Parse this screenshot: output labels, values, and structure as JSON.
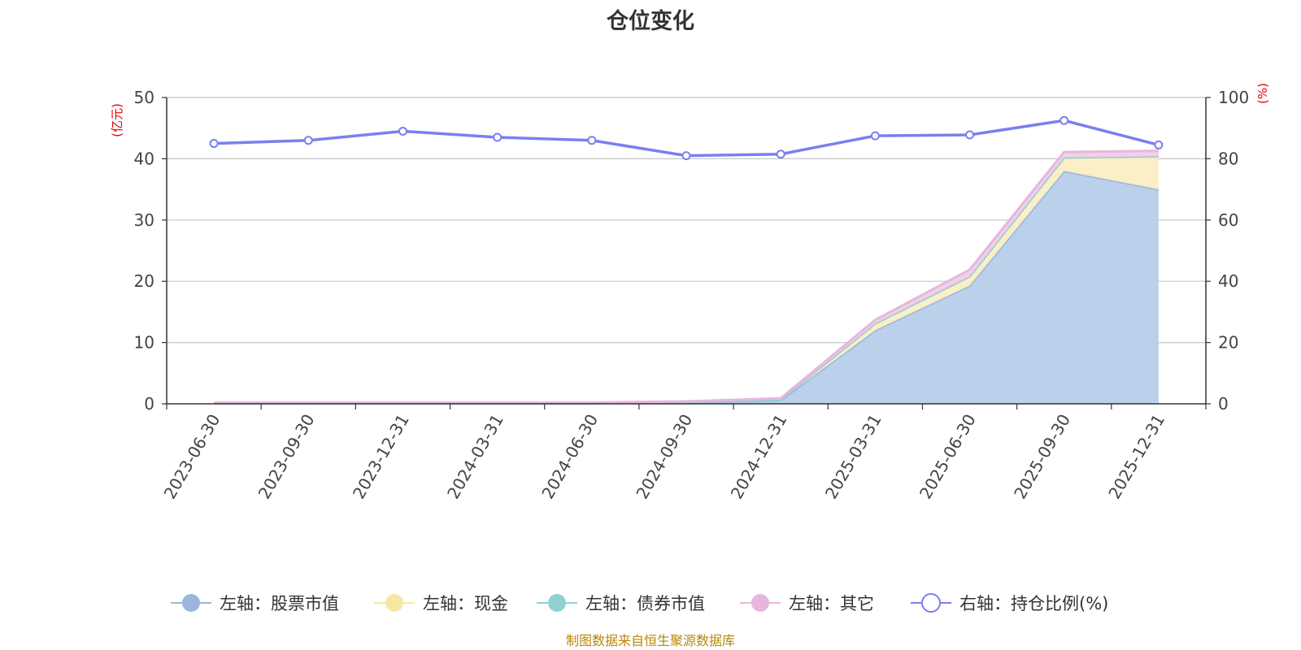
{
  "chart_data": {
    "type": "area",
    "title": "仓位变化",
    "categories": [
      "2023-06-30",
      "2023-09-30",
      "2023-12-31",
      "2024-03-31",
      "2024-06-30",
      "2024-09-30",
      "2024-12-31",
      "2025-03-31",
      "2025-06-30",
      "2025-09-30",
      "2025-12-31"
    ],
    "left_axis": {
      "unit": "(亿元)",
      "ylim": [
        0,
        50
      ],
      "ticks": [
        "0",
        "10",
        "20",
        "30",
        "40",
        "50"
      ],
      "tick_values": [
        0,
        10,
        20,
        30,
        40,
        50
      ]
    },
    "right_axis": {
      "unit": "(%)",
      "ylim": [
        0,
        100
      ],
      "ticks": [
        "0",
        "20",
        "40",
        "60",
        "80",
        "100"
      ],
      "tick_values": [
        0,
        20,
        40,
        60,
        80,
        100
      ]
    },
    "series": [
      {
        "name": "左轴：股票市值",
        "axis": "left",
        "stacked": true,
        "color": "#9ab5e0",
        "fill": "#b7cdea",
        "values": [
          0.1,
          0.1,
          0.1,
          0.1,
          0.1,
          0.2,
          0.6,
          12.0,
          19.3,
          38.0,
          35.0
        ]
      },
      {
        "name": "左轴：现金",
        "axis": "left",
        "stacked": true,
        "color": "#f6e7a5",
        "fill": "#faeec3",
        "values": [
          0.0,
          0.0,
          0.0,
          0.0,
          0.0,
          0.1,
          0.1,
          1.1,
          1.5,
          2.2,
          5.4
        ]
      },
      {
        "name": "左轴：债券市值",
        "axis": "left",
        "stacked": true,
        "color": "#8fd1d0",
        "fill": "#b6e3e2",
        "values": [
          0,
          0,
          0,
          0,
          0,
          0,
          0,
          0,
          0,
          0,
          0
        ]
      },
      {
        "name": "左轴：其它",
        "axis": "left",
        "stacked": true,
        "color": "#e8b6dc",
        "fill": "#f0cde8",
        "values": [
          0.1,
          0.1,
          0.1,
          0.1,
          0.1,
          0.1,
          0.2,
          0.6,
          1.1,
          0.9,
          0.9
        ]
      },
      {
        "name": "右轴：持仓比例(%)",
        "axis": "right",
        "stacked": false,
        "type": "line",
        "color": "#7b7ff0",
        "values": [
          85.0,
          86.0,
          89.0,
          87.0,
          86.0,
          81.0,
          81.5,
          87.5,
          87.8,
          92.5,
          84.5
        ]
      }
    ],
    "grid": true,
    "legend_position": "bottom"
  },
  "footer": {
    "source": "制图数据来自恒生聚源数据库"
  }
}
